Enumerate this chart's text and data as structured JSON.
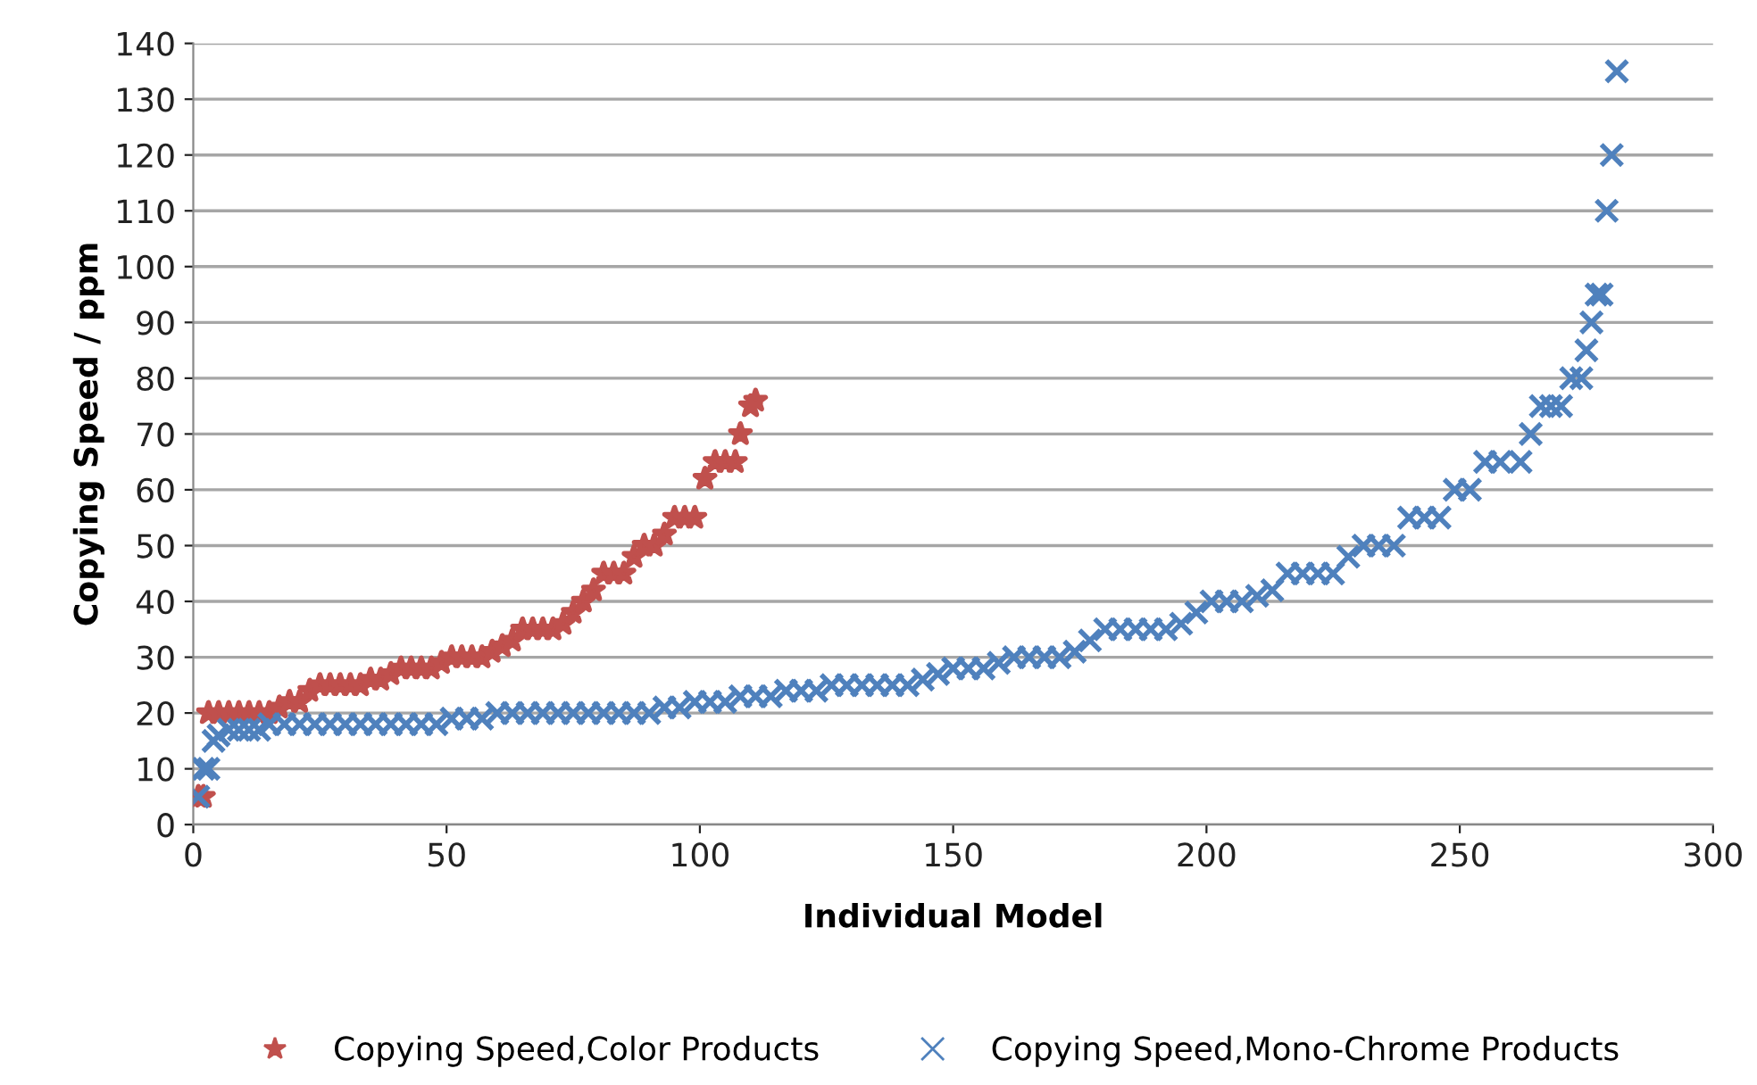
{
  "chart_data": {
    "type": "scatter",
    "xlabel": "Individual Model",
    "ylabel": "Copying Speed / ppm",
    "xlim": [
      0,
      300
    ],
    "xticks": [
      0,
      50,
      100,
      150,
      200,
      250,
      300
    ],
    "ylim": [
      0,
      140
    ],
    "yticks": [
      0,
      10,
      20,
      30,
      40,
      50,
      60,
      70,
      80,
      90,
      100,
      110,
      120,
      130,
      140
    ],
    "grid": "y",
    "legend": "bottom",
    "series": [
      {
        "name": "Copying Speed,Color Products",
        "color": "#c0504d",
        "marker": "star",
        "x": [
          1,
          2,
          3,
          5,
          7,
          9,
          11,
          13,
          15,
          17,
          19,
          21,
          23,
          25,
          27,
          29,
          31,
          33,
          35,
          37,
          39,
          41,
          43,
          45,
          47,
          49,
          51,
          53,
          55,
          57,
          59,
          61,
          63,
          65,
          67,
          69,
          71,
          73,
          75,
          77,
          79,
          81,
          83,
          85,
          87,
          89,
          91,
          93,
          95,
          97,
          99,
          101,
          103,
          105,
          107,
          108,
          110,
          111
        ],
        "values": [
          5,
          5,
          20,
          20,
          20,
          20,
          20,
          20,
          20,
          21,
          22,
          22,
          24,
          25,
          25,
          25,
          25,
          25,
          26,
          26,
          27,
          28,
          28,
          28,
          28,
          29,
          30,
          30,
          30,
          30,
          31,
          32,
          33,
          35,
          35,
          35,
          35,
          36,
          38,
          40,
          42,
          45,
          45,
          45,
          48,
          50,
          50,
          52,
          55,
          55,
          55,
          62,
          65,
          65,
          65,
          70,
          75,
          76
        ]
      },
      {
        "name": "Copying Speed,Mono-Chrome Products",
        "color": "#4f81bd",
        "marker": "cross",
        "x": [
          1,
          2,
          3,
          4,
          5,
          7,
          9,
          11,
          13,
          15,
          18,
          21,
          24,
          27,
          30,
          33,
          36,
          39,
          42,
          45,
          48,
          51,
          54,
          57,
          60,
          63,
          66,
          69,
          72,
          75,
          78,
          81,
          84,
          87,
          90,
          93,
          96,
          99,
          102,
          105,
          108,
          111,
          114,
          117,
          120,
          123,
          126,
          129,
          132,
          135,
          138,
          141,
          144,
          147,
          150,
          153,
          156,
          159,
          162,
          165,
          168,
          171,
          174,
          177,
          180,
          183,
          186,
          189,
          192,
          195,
          198,
          201,
          204,
          207,
          210,
          213,
          216,
          219,
          222,
          225,
          228,
          231,
          234,
          237,
          240,
          243,
          246,
          249,
          252,
          255,
          258,
          262,
          264,
          266,
          268,
          270,
          272,
          274,
          275,
          276,
          277,
          278,
          279,
          280,
          281
        ],
        "values": [
          5,
          10,
          10,
          15,
          16,
          17,
          17,
          17,
          17,
          18,
          18,
          18,
          18,
          18,
          18,
          18,
          18,
          18,
          18,
          18,
          18,
          19,
          19,
          19,
          20,
          20,
          20,
          20,
          20,
          20,
          20,
          20,
          20,
          20,
          20,
          21,
          21,
          22,
          22,
          22,
          23,
          23,
          23,
          24,
          24,
          24,
          25,
          25,
          25,
          25,
          25,
          25,
          26,
          27,
          28,
          28,
          28,
          29,
          30,
          30,
          30,
          30,
          31,
          33,
          35,
          35,
          35,
          35,
          35,
          36,
          38,
          40,
          40,
          40,
          41,
          42,
          45,
          45,
          45,
          45,
          48,
          50,
          50,
          50,
          55,
          55,
          55,
          60,
          60,
          65,
          65,
          65,
          70,
          75,
          75,
          75,
          80,
          80,
          85,
          90,
          95,
          95,
          110,
          120,
          135
        ]
      }
    ]
  }
}
